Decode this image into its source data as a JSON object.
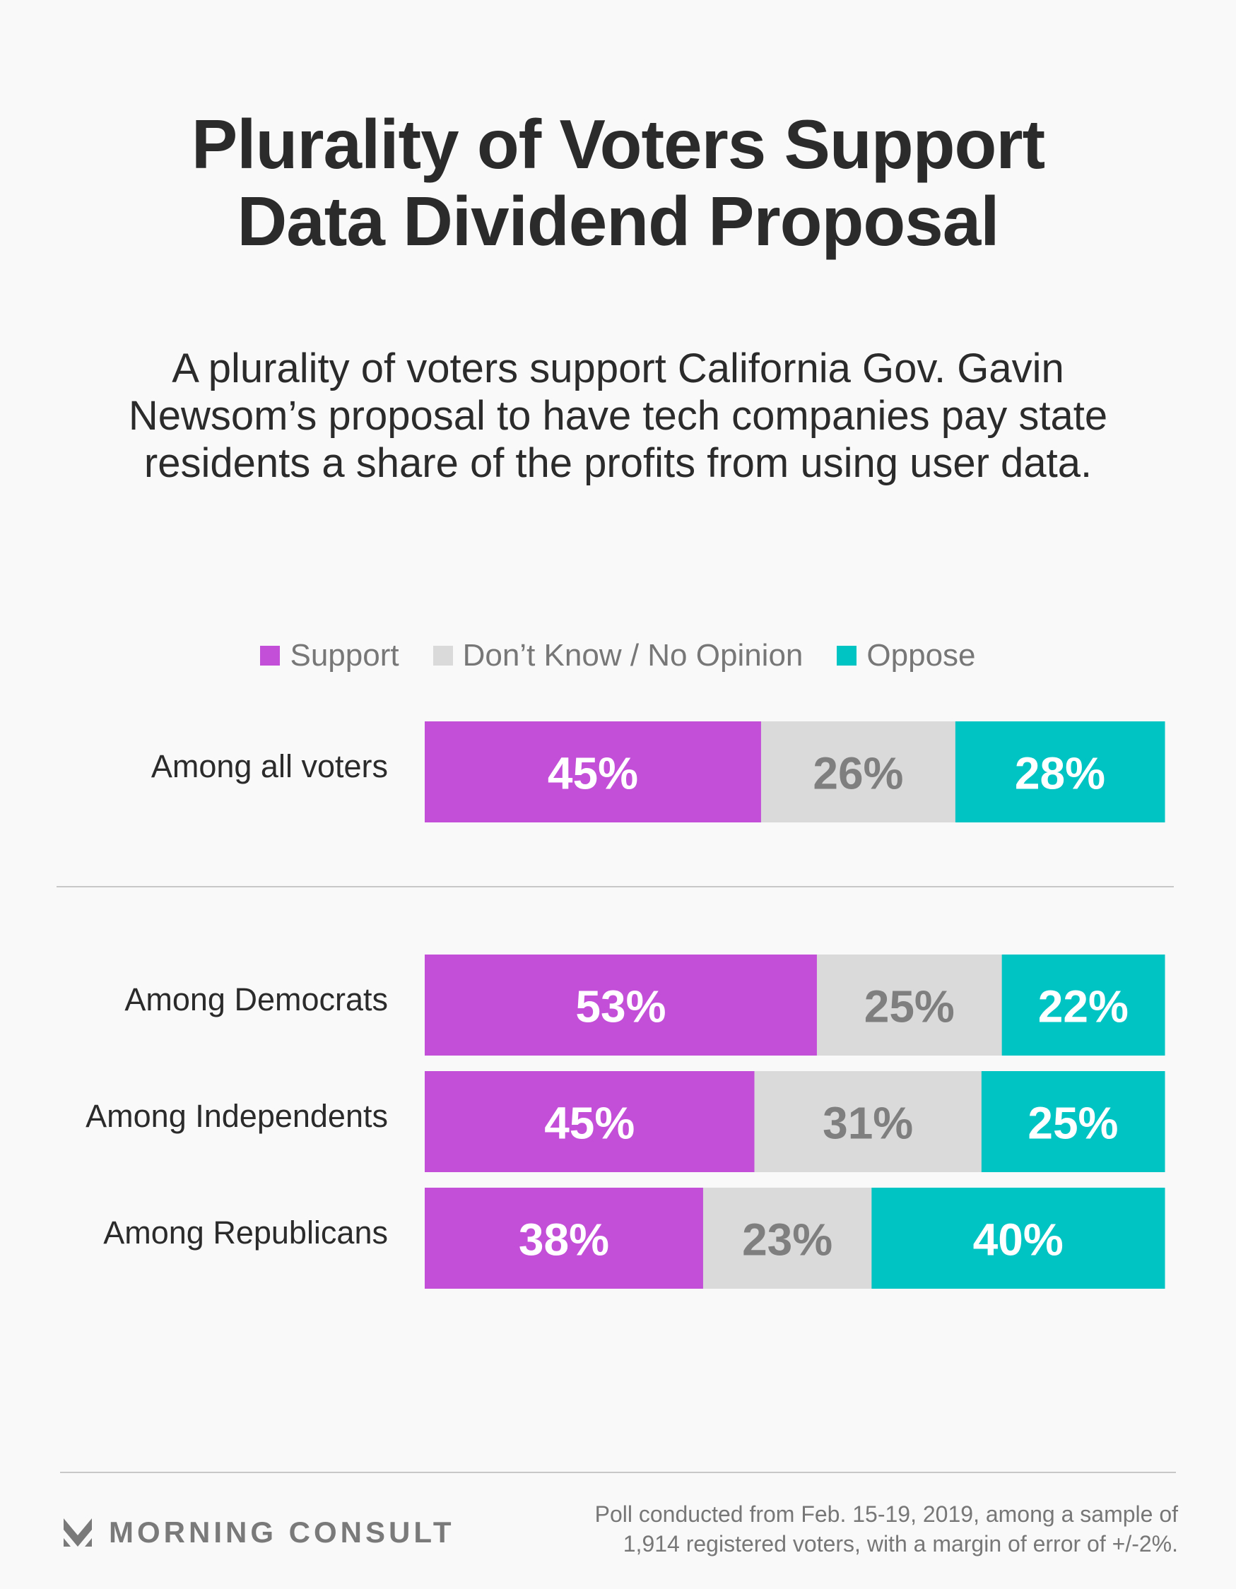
{
  "title_lines": [
    "Plurality of Voters Support",
    "Data Dividend Proposal"
  ],
  "subtitle_lines": [
    "A plurality of voters support California Gov. Gavin",
    "Newsom’s proposal to have tech companies pay state",
    "residents a share of the profits from using user data."
  ],
  "colors": {
    "support": "#c34ed8",
    "dont_know": "#dadada",
    "oppose": "#00c3c3",
    "label_on_dark": "#ffffff",
    "label_on_light": "#7f7f7f"
  },
  "chart_data": {
    "type": "bar",
    "orientation": "horizontal",
    "stacked": true,
    "title": "Plurality of Voters Support Data Dividend Proposal",
    "subtitle": "A plurality of voters support California Gov. Gavin Newsom’s proposal to have tech companies pay state residents a share of the profits from using user data.",
    "legend_position": "top-center",
    "categories": [
      "Among all voters",
      "Among Democrats",
      "Among Independents",
      "Among Republicans"
    ],
    "series": [
      {
        "name": "Support",
        "values": [
          45,
          53,
          45,
          38
        ]
      },
      {
        "name": "Don’t Know / No Opinion",
        "values": [
          26,
          25,
          31,
          23
        ]
      },
      {
        "name": "Oppose",
        "values": [
          28,
          22,
          25,
          40
        ]
      }
    ],
    "value_labels": [
      [
        "45%",
        "26%",
        "28%"
      ],
      [
        "53%",
        "25%",
        "22%"
      ],
      [
        "45%",
        "31%",
        "25%"
      ],
      [
        "38%",
        "23%",
        "40%"
      ]
    ],
    "unit": "%",
    "xlabel": "",
    "ylabel": "",
    "grid": false
  },
  "legend": [
    {
      "label": "Support",
      "color_key": "support"
    },
    {
      "label": "Don’t Know / No Opinion",
      "color_key": "dont_know"
    },
    {
      "label": "Oppose",
      "color_key": "oppose"
    }
  ],
  "footer": {
    "brand": "MORNING CONSULT",
    "note_lines": [
      "Poll conducted from Feb. 15-19, 2019, among a sample of",
      "1,914 registered voters, with a margin of error of +/-2%."
    ]
  }
}
